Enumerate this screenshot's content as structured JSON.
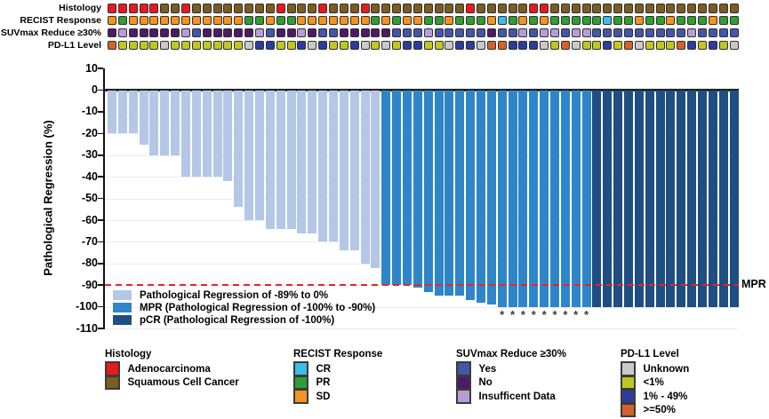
{
  "tracks": {
    "rows": [
      {
        "label": "Histology",
        "codes": "AAAAASSASSSSSSSSASSSASSSASSSSSSSSSASSSSSAASSSSSSSSSSSSSSSSSS",
        "palette": {
          "A": "#e8191d",
          "S": "#7b5c21"
        }
      },
      {
        "label": "RECIST Response",
        "codes": "SPSSSSSSSSSSSPPSPPSSSSSSSPSPSSPPSPPPSCPSPSPPPPPCPPSPPSPPPSPP",
        "palette": {
          "C": "#3bbde9",
          "P": "#2f9e33",
          "S": "#f6921e"
        }
      },
      {
        "label": "SUVmax Reduce ≥30%",
        "codes": "NINNNNNIYNNNNNIYNNINYYNNNNNYYYIYYYYYNYYIYIIYIIYYYYYYYYYIYYYY",
        "palette": {
          "Y": "#4456a9",
          "N": "#4e1a63",
          "I": "#b79dd8"
        }
      },
      {
        "label": "PD-L1 Level",
        "codes": "HLLLLULLLLLLLUMMLLMUMLLMULULMMLLUMMUHHMMMULHULLMLHULLLHMLMLU",
        "palette": {
          "U": "#c9c9c9",
          "L": "#c0c724",
          "M": "#2c3c9c",
          "H": "#d2622c"
        }
      }
    ]
  },
  "chart_data": {
    "type": "bar",
    "title": "",
    "ylabel": "Pathological Regression (%)",
    "ylim": [
      -110,
      10
    ],
    "yticks": [
      10,
      0,
      -10,
      -20,
      -30,
      -40,
      -50,
      -60,
      -70,
      -80,
      -90,
      -100,
      -110
    ],
    "values": [
      -20,
      -20,
      -20,
      -25,
      -30,
      -30,
      -30,
      -40,
      -40,
      -40,
      -40,
      -42,
      -54,
      -60,
      -60,
      -64,
      -64,
      -64,
      -66,
      -66,
      -70,
      -70,
      -74,
      -74,
      -80,
      -82,
      -90,
      -90,
      -90,
      -91,
      -93,
      -95,
      -95,
      -95,
      -97,
      -98,
      -99,
      -100,
      -100,
      -100,
      -100,
      -100,
      -100,
      -100,
      -100,
      -100,
      -100,
      -100,
      -100,
      -100,
      -100,
      -100,
      -100,
      -100,
      -100,
      -100,
      -100,
      -100,
      -100,
      -100
    ],
    "bar_groups": [
      {
        "name": "light",
        "count": 26
      },
      {
        "name": "mpr",
        "count": 20
      },
      {
        "name": "pcr",
        "count": 14
      }
    ],
    "asterisk_bar_indices": [
      37,
      38,
      39,
      40,
      41,
      42,
      43,
      44,
      45
    ],
    "asterisk_symbol": "*",
    "reference_line": {
      "value": -90,
      "label": "MPR",
      "color": "#ee2222",
      "style": "dashed"
    },
    "grid": true,
    "legend_position": "inside bottom-left",
    "legend": [
      {
        "key": "light",
        "label": "Pathological Regression of -89% to 0%",
        "color": "#b4c7e7"
      },
      {
        "key": "mpr",
        "label": "MPR (Pathological Regression of -100% to -90%)",
        "color": "#2e86c9"
      },
      {
        "key": "pcr",
        "label": "pCR (Pathological Regression of -100%)",
        "color": "#1f4e82"
      }
    ]
  },
  "bottom_legends": [
    {
      "title": "Histology",
      "items": [
        {
          "label": "Adenocarcinoma",
          "color": "#e8191d"
        },
        {
          "label": "Squamous Cell Cancer",
          "color": "#7b5c21"
        }
      ]
    },
    {
      "title": "RECIST Response",
      "items": [
        {
          "label": "CR",
          "color": "#3bbde9"
        },
        {
          "label": "PR",
          "color": "#2f9e33"
        },
        {
          "label": "SD",
          "color": "#f6921e"
        }
      ]
    },
    {
      "title": "SUVmax Reduce ≥30%",
      "items": [
        {
          "label": "Yes",
          "color": "#4456a9"
        },
        {
          "label": "No",
          "color": "#4e1a63"
        },
        {
          "label": "Insufficent Data",
          "color": "#b79dd8"
        }
      ]
    },
    {
      "title": "PD-L1 Level",
      "items": [
        {
          "label": "Unknown",
          "color": "#c9c9c9"
        },
        {
          "label": "<1%",
          "color": "#c0c724"
        },
        {
          "label": "1% - 49%",
          "color": "#2c3c9c"
        },
        {
          "label": ">=50%",
          "color": "#d2622c"
        }
      ]
    }
  ]
}
